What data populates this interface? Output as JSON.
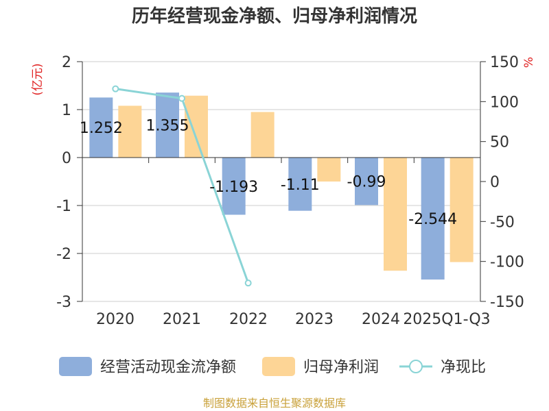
{
  "chart_data": {
    "type": "bar+line",
    "title": "历年经营现金净额、归母净利润情况",
    "categories": [
      "2020",
      "2021",
      "2022",
      "2023",
      "2024",
      "2025Q1-Q3"
    ],
    "series": [
      {
        "name": "经营活动现金流净额",
        "type": "bar",
        "axis": "left",
        "color": "#8eaedb",
        "values": [
          1.252,
          1.355,
          -1.193,
          -1.11,
          -0.99,
          -2.544
        ],
        "labels": [
          "1.252",
          "1.355",
          "-1.193",
          "-1.11",
          "-0.99",
          "-2.544"
        ]
      },
      {
        "name": "归母净利润",
        "type": "bar",
        "axis": "left",
        "color": "#fdd596",
        "values": [
          1.08,
          1.29,
          0.95,
          -0.5,
          -2.36,
          -2.18
        ]
      },
      {
        "name": "净现比",
        "type": "line",
        "axis": "right",
        "color": "#8ad4d6",
        "values": [
          116,
          104,
          -127,
          null,
          null,
          null
        ]
      }
    ],
    "left_axis": {
      "unit": "(亿元)",
      "min": -3,
      "max": 2,
      "ticks": [
        "2",
        "1",
        "0",
        "-1",
        "-2",
        "-3"
      ]
    },
    "right_axis": {
      "unit": "%",
      "min": -150,
      "max": 150,
      "ticks": [
        "150",
        "100",
        "50",
        "0",
        "-50",
        "-100",
        "-150"
      ]
    }
  },
  "source": "制图数据来自恒生聚源数据库"
}
